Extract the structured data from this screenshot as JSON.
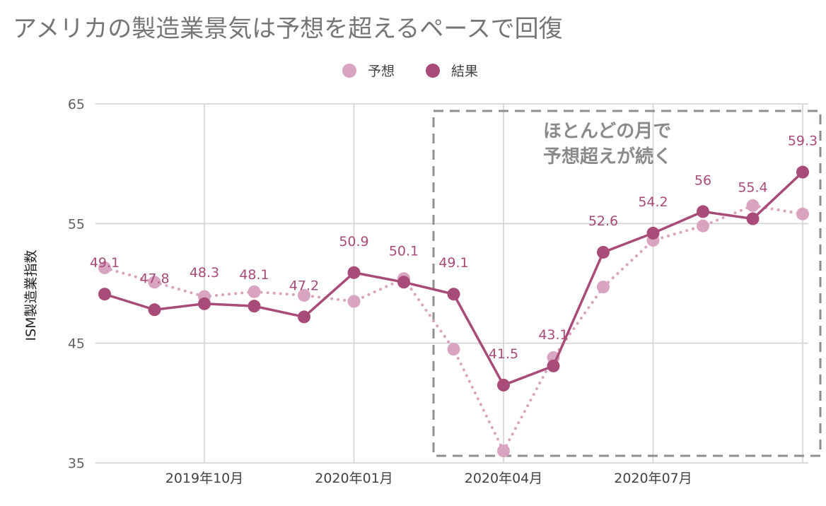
{
  "chart_data": {
    "type": "line",
    "title": "アメリカの製造業景気は予想を超えるペースで回復",
    "ylabel": "ISM製造業指数",
    "ylim": [
      35,
      65
    ],
    "yticks": [
      35,
      45,
      55,
      65
    ],
    "xticks": [
      {
        "label": "2019年10月",
        "index": 2
      },
      {
        "label": "2020年01月",
        "index": 5
      },
      {
        "label": "2020年04月",
        "index": 8
      },
      {
        "label": "2020年07月",
        "index": 11
      }
    ],
    "legend_position": "top-center",
    "grid": true,
    "series": [
      {
        "name": "予想",
        "color": "#d8a4bf",
        "style": "dotted",
        "values": [
          51.3,
          50.1,
          48.9,
          49.3,
          49.0,
          48.5,
          50.4,
          44.5,
          36.0,
          43.8,
          49.7,
          53.6,
          54.8,
          56.5,
          55.8
        ]
      },
      {
        "name": "結果",
        "color": "#a84b78",
        "style": "solid",
        "values": [
          49.1,
          47.8,
          48.3,
          48.1,
          47.2,
          50.9,
          50.1,
          49.1,
          41.5,
          43.1,
          52.6,
          54.2,
          56.0,
          55.4,
          59.3
        ],
        "labels": [
          "49.1",
          "47.8",
          "48.3",
          "48.1",
          "47.2",
          "50.9",
          "50.1",
          "49.1",
          "41.5",
          "43.1",
          "52.6",
          "54.2",
          "56",
          "55.4",
          "59.3"
        ]
      }
    ],
    "annotation": {
      "lines": [
        "ほとんどの月で",
        "予想超えが続く"
      ]
    }
  }
}
